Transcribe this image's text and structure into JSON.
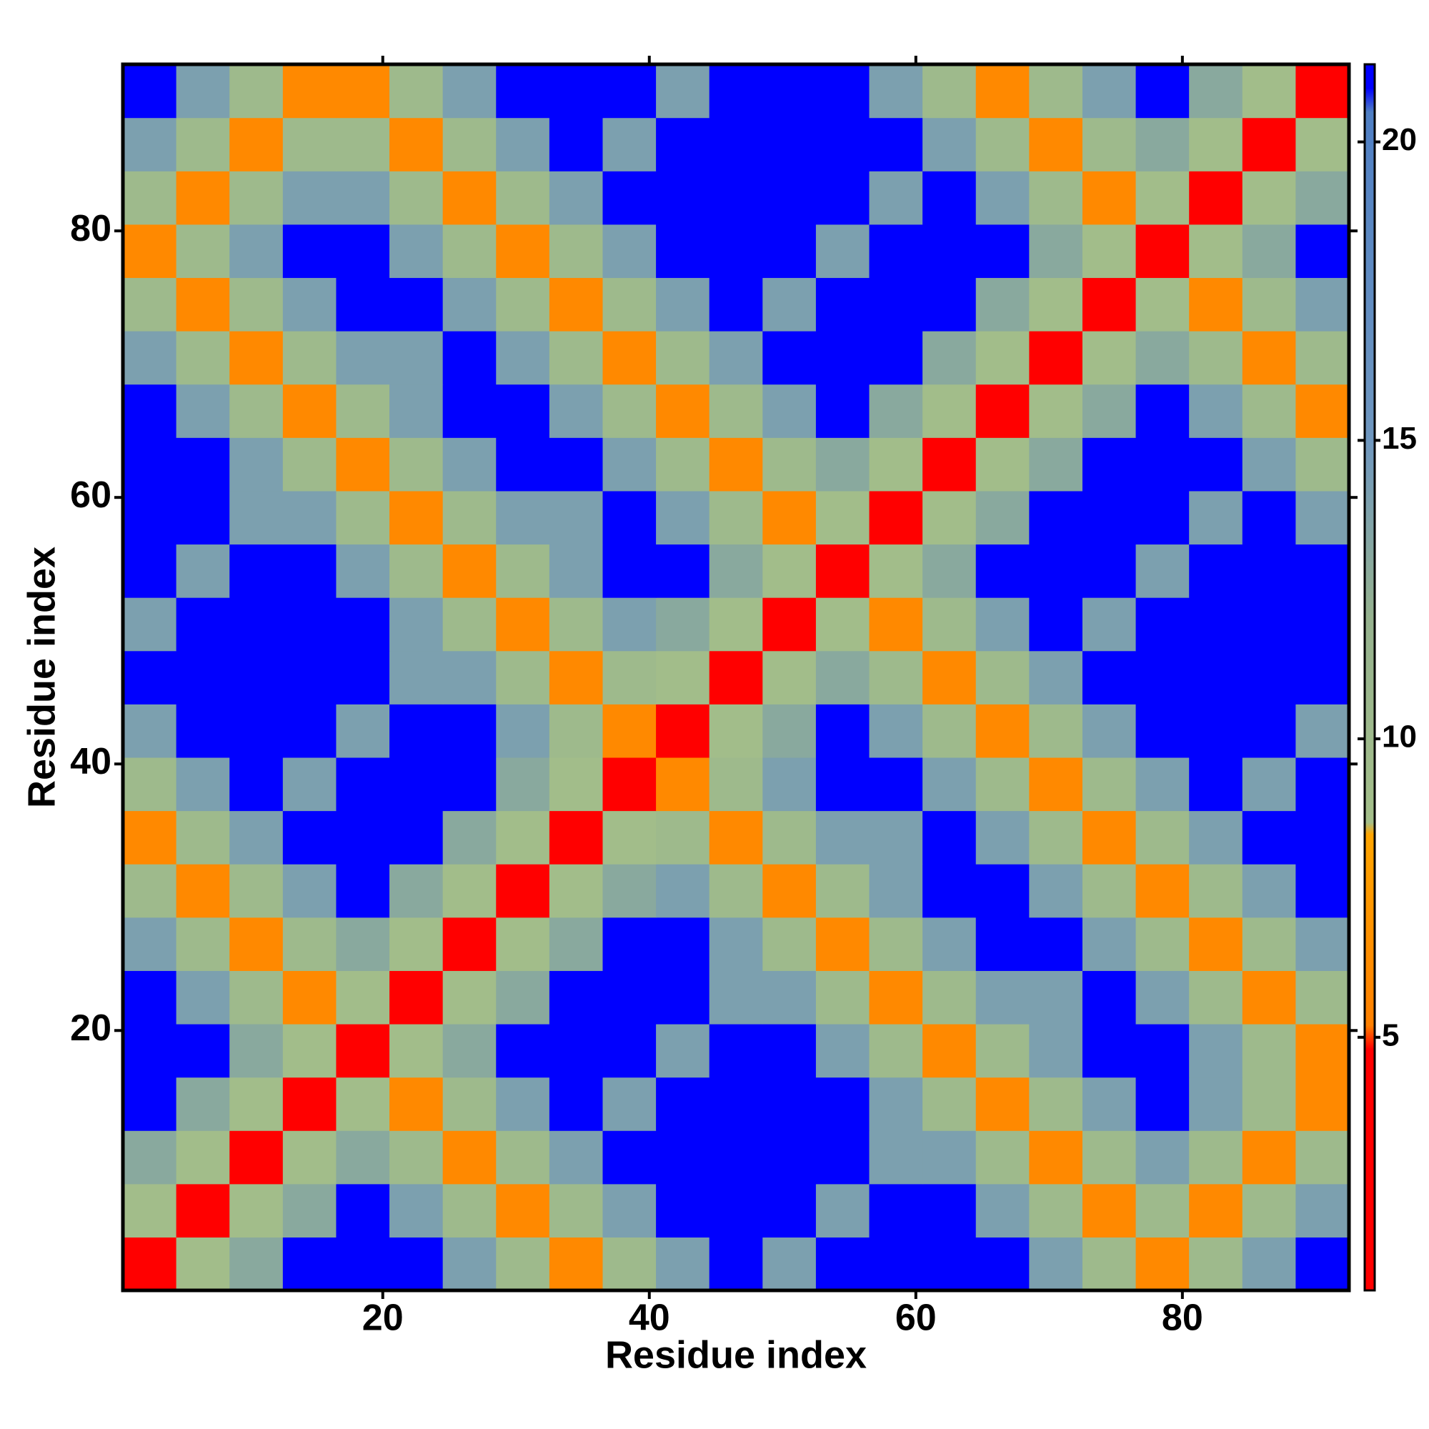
{
  "chart_data": {
    "type": "heatmap",
    "xlabel": "Residue index",
    "ylabel": "Residue index",
    "x": [
      2.5,
      6.5,
      10.5,
      14.5,
      18.5,
      22.5,
      26.5,
      30.5,
      34.5,
      38.5,
      42.5,
      46.5,
      50.5,
      54.5,
      58.5,
      62.5,
      66.5,
      70.5,
      74.5,
      78.5,
      82.5,
      86.5,
      90.5
    ],
    "y": [
      2.5,
      6.5,
      10.5,
      14.5,
      18.5,
      22.5,
      26.5,
      30.5,
      34.5,
      38.5,
      42.5,
      46.5,
      50.5,
      54.5,
      58.5,
      62.5,
      66.5,
      70.5,
      74.5,
      78.5,
      82.5,
      86.5,
      90.5
    ],
    "z": [
      [
        2,
        9,
        13,
        21,
        21,
        21,
        14,
        10,
        6,
        10,
        14,
        21,
        14,
        21,
        21,
        21,
        21,
        14,
        10,
        6,
        10,
        14,
        21
      ],
      [
        9,
        2,
        9,
        13,
        21,
        14,
        10,
        6,
        10,
        14,
        21,
        21,
        21,
        14,
        21,
        21,
        14,
        10,
        6,
        10,
        6,
        10,
        14
      ],
      [
        13,
        9,
        2,
        9,
        13,
        10,
        6,
        10,
        14,
        21,
        21,
        21,
        21,
        21,
        14,
        14,
        10,
        6,
        10,
        14,
        10,
        6,
        10
      ],
      [
        21,
        13,
        9,
        2,
        9,
        6,
        10,
        14,
        21,
        14,
        21,
        21,
        21,
        21,
        14,
        10,
        6,
        10,
        14,
        21,
        14,
        10,
        6
      ],
      [
        21,
        21,
        13,
        9,
        2,
        9,
        13,
        21,
        21,
        21,
        14,
        21,
        21,
        14,
        10,
        6,
        10,
        14,
        21,
        21,
        14,
        10,
        6
      ],
      [
        21,
        14,
        10,
        6,
        9,
        2,
        9,
        13,
        21,
        21,
        21,
        14,
        14,
        10,
        6,
        10,
        14,
        14,
        21,
        14,
        10,
        6,
        10
      ],
      [
        14,
        10,
        6,
        10,
        13,
        9,
        2,
        9,
        13,
        21,
        21,
        14,
        10,
        6,
        10,
        14,
        21,
        21,
        14,
        10,
        6,
        10,
        14
      ],
      [
        10,
        6,
        10,
        14,
        21,
        13,
        9,
        2,
        9,
        13,
        14,
        10,
        6,
        10,
        14,
        21,
        21,
        14,
        10,
        6,
        10,
        14,
        21
      ],
      [
        6,
        10,
        14,
        21,
        21,
        21,
        13,
        9,
        2,
        9,
        10,
        6,
        10,
        14,
        14,
        21,
        14,
        10,
        6,
        10,
        14,
        21,
        21
      ],
      [
        10,
        14,
        21,
        14,
        21,
        21,
        21,
        13,
        9,
        2,
        6,
        10,
        14,
        21,
        21,
        14,
        10,
        6,
        10,
        14,
        21,
        14,
        21
      ],
      [
        14,
        21,
        21,
        21,
        14,
        21,
        21,
        14,
        10,
        6,
        2,
        9,
        13,
        21,
        14,
        10,
        6,
        10,
        14,
        21,
        21,
        21,
        14
      ],
      [
        21,
        21,
        21,
        21,
        21,
        14,
        14,
        10,
        6,
        10,
        9,
        2,
        9,
        13,
        10,
        6,
        10,
        14,
        21,
        21,
        21,
        21,
        21
      ],
      [
        14,
        21,
        21,
        21,
        21,
        14,
        10,
        6,
        10,
        14,
        13,
        9,
        2,
        9,
        6,
        10,
        14,
        21,
        14,
        21,
        21,
        21,
        21
      ],
      [
        21,
        14,
        21,
        21,
        14,
        10,
        6,
        10,
        14,
        21,
        21,
        13,
        9,
        2,
        9,
        13,
        21,
        21,
        21,
        14,
        21,
        21,
        21
      ],
      [
        21,
        21,
        14,
        14,
        10,
        6,
        10,
        14,
        14,
        21,
        14,
        10,
        6,
        9,
        2,
        9,
        13,
        21,
        21,
        21,
        14,
        21,
        14
      ],
      [
        21,
        21,
        14,
        10,
        6,
        10,
        14,
        21,
        21,
        14,
        10,
        6,
        10,
        13,
        9,
        2,
        9,
        13,
        21,
        21,
        21,
        14,
        10
      ],
      [
        21,
        14,
        10,
        6,
        10,
        14,
        21,
        21,
        14,
        10,
        6,
        10,
        14,
        21,
        13,
        9,
        2,
        9,
        13,
        21,
        14,
        10,
        6
      ],
      [
        14,
        10,
        6,
        10,
        14,
        14,
        21,
        14,
        10,
        6,
        10,
        14,
        21,
        21,
        21,
        13,
        9,
        2,
        9,
        13,
        10,
        6,
        10
      ],
      [
        10,
        6,
        10,
        14,
        21,
        21,
        14,
        10,
        6,
        10,
        14,
        21,
        14,
        21,
        21,
        21,
        13,
        9,
        2,
        9,
        6,
        10,
        14
      ],
      [
        6,
        10,
        14,
        21,
        21,
        14,
        10,
        6,
        10,
        14,
        21,
        21,
        21,
        14,
        21,
        21,
        21,
        13,
        9,
        2,
        9,
        13,
        21
      ],
      [
        10,
        6,
        10,
        14,
        14,
        10,
        6,
        10,
        14,
        21,
        21,
        21,
        21,
        21,
        14,
        21,
        14,
        10,
        6,
        9,
        2,
        9,
        13
      ],
      [
        14,
        10,
        6,
        10,
        10,
        6,
        10,
        14,
        21,
        14,
        21,
        21,
        21,
        21,
        21,
        14,
        10,
        6,
        10,
        13,
        9,
        2,
        9
      ],
      [
        21,
        14,
        10,
        6,
        6,
        10,
        14,
        21,
        21,
        21,
        14,
        21,
        21,
        21,
        14,
        10,
        6,
        10,
        14,
        21,
        13,
        9,
        2
      ]
    ],
    "xlim": [
      0.5,
      92.5
    ],
    "ylim": [
      0.5,
      92.5
    ],
    "xticks": [
      20,
      40,
      60,
      80
    ],
    "yticks": [
      20,
      40,
      60,
      80
    ],
    "zlim": [
      0.76,
      21.3
    ],
    "zticks": [
      5,
      10,
      15,
      20
    ],
    "colorscale": [
      [
        0.76,
        "#ff0000"
      ],
      [
        4.8,
        "#ff0000"
      ],
      [
        5.2,
        "#ff8000"
      ],
      [
        8.4,
        "#ffa500"
      ],
      [
        8.6,
        "#a4bf8a"
      ],
      [
        12,
        "#96b28e"
      ],
      [
        15,
        "#6f97bf"
      ],
      [
        20.5,
        "#4f7fc4"
      ],
      [
        20.9,
        "#0000ff"
      ],
      [
        21.3,
        "#0000ff"
      ]
    ]
  }
}
